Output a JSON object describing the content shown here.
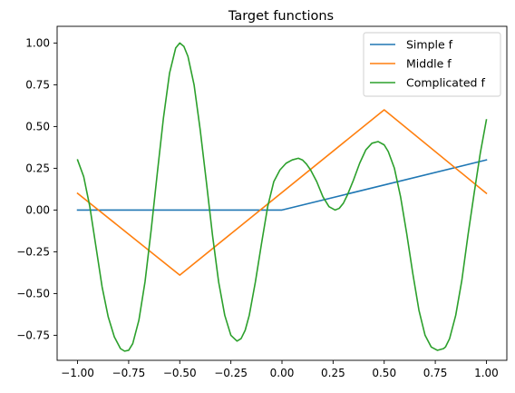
{
  "chart_data": {
    "type": "line",
    "title": "Target functions",
    "xlabel": "",
    "ylabel": "",
    "xlim": [
      -1.1,
      1.1
    ],
    "ylim": [
      -0.9,
      1.1
    ],
    "xticks": [
      -1.0,
      -0.75,
      -0.5,
      -0.25,
      0.0,
      0.25,
      0.5,
      0.75,
      1.0
    ],
    "xtick_labels": [
      "−1.00",
      "−0.75",
      "−0.50",
      "−0.25",
      "0.00",
      "0.25",
      "0.50",
      "0.75",
      "1.00"
    ],
    "yticks": [
      -0.75,
      -0.5,
      -0.25,
      0.0,
      0.25,
      0.5,
      0.75,
      1.0
    ],
    "ytick_labels": [
      "−0.75",
      "−0.50",
      "−0.25",
      "0.00",
      "0.25",
      "0.50",
      "0.75",
      "1.00"
    ],
    "grid": false,
    "legend": {
      "position": "top-right"
    },
    "series": [
      {
        "name": "Simple f",
        "color": "#1f77b4",
        "x": [
          -1.0,
          0.0,
          1.0
        ],
        "y": [
          0.0,
          0.0,
          0.3
        ]
      },
      {
        "name": "Middle f",
        "color": "#ff7f0e",
        "x": [
          -1.0,
          -0.5,
          0.5,
          1.0
        ],
        "y": [
          0.1,
          -0.39,
          0.6,
          0.1
        ]
      },
      {
        "name": "Complicated f",
        "color": "#2ca02c",
        "x": [
          -1.0,
          -0.97,
          -0.94,
          -0.91,
          -0.88,
          -0.85,
          -0.82,
          -0.79,
          -0.77,
          -0.75,
          -0.73,
          -0.7,
          -0.67,
          -0.64,
          -0.61,
          -0.58,
          -0.55,
          -0.52,
          -0.5,
          -0.48,
          -0.46,
          -0.43,
          -0.4,
          -0.37,
          -0.34,
          -0.31,
          -0.28,
          -0.25,
          -0.22,
          -0.2,
          -0.18,
          -0.16,
          -0.13,
          -0.1,
          -0.07,
          -0.04,
          -0.01,
          0.02,
          0.05,
          0.08,
          0.1,
          0.12,
          0.14,
          0.17,
          0.2,
          0.23,
          0.26,
          0.28,
          0.3,
          0.32,
          0.35,
          0.38,
          0.41,
          0.44,
          0.47,
          0.5,
          0.52,
          0.55,
          0.58,
          0.61,
          0.64,
          0.67,
          0.7,
          0.73,
          0.76,
          0.79,
          0.8,
          0.82,
          0.85,
          0.88,
          0.91,
          0.94,
          0.97,
          1.0
        ],
        "y": [
          0.3,
          0.2,
          0.02,
          -0.22,
          -0.46,
          -0.64,
          -0.76,
          -0.83,
          -0.845,
          -0.84,
          -0.8,
          -0.66,
          -0.43,
          -0.12,
          0.22,
          0.55,
          0.82,
          0.97,
          1.0,
          0.98,
          0.92,
          0.75,
          0.48,
          0.17,
          -0.15,
          -0.43,
          -0.63,
          -0.75,
          -0.785,
          -0.77,
          -0.72,
          -0.63,
          -0.43,
          -0.2,
          0.02,
          0.17,
          0.24,
          0.28,
          0.3,
          0.31,
          0.3,
          0.275,
          0.24,
          0.17,
          0.08,
          0.02,
          0.0,
          0.01,
          0.04,
          0.09,
          0.18,
          0.28,
          0.36,
          0.4,
          0.41,
          0.39,
          0.35,
          0.25,
          0.08,
          -0.14,
          -0.38,
          -0.6,
          -0.75,
          -0.82,
          -0.84,
          -0.83,
          -0.82,
          -0.77,
          -0.63,
          -0.42,
          -0.15,
          0.1,
          0.34,
          0.54
        ]
      }
    ]
  }
}
